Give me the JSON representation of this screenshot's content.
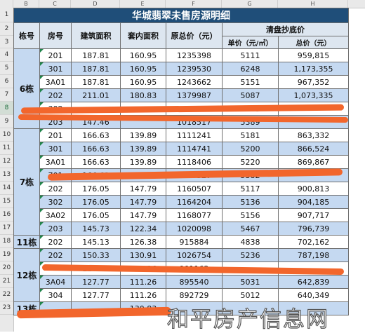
{
  "column_headers": [
    "B",
    "C",
    "D",
    "E",
    "F",
    "G",
    "H"
  ],
  "row_numbers": [
    "1",
    "2",
    "3",
    "4",
    "5",
    "6",
    "7",
    "8",
    "9",
    "10",
    "11",
    "12",
    "13",
    "14",
    "15",
    "16",
    "17",
    "18",
    "19",
    "20",
    "21",
    "22",
    "23"
  ],
  "selected_row": "8",
  "title": "华城翡翠未售房源明细",
  "headers": {
    "building": "栋号",
    "room": "房号",
    "built_area": "建筑面积",
    "inner_area": "套内面积",
    "orig_total": "原总价（元）",
    "clearance": "清盘抄底价",
    "unit_price": "单价（元/㎡）",
    "total_price": "总价（元）"
  },
  "groups": [
    {
      "building": "6栋",
      "rows": [
        {
          "room": "201",
          "built": "187.81",
          "inner": "160.95",
          "orig": "1235398",
          "unit": "5111",
          "total": "959,815"
        },
        {
          "room": "301",
          "built": "187.81",
          "inner": "160.95",
          "orig": "1239530",
          "unit": "6248",
          "total": "1,173,355"
        },
        {
          "room": "3A01",
          "built": "187.81",
          "inner": "160.95",
          "orig": "1243662",
          "unit": "5151",
          "total": "967,352"
        },
        {
          "room": "202",
          "built": "211.01",
          "inner": "180.83",
          "orig": "1379987",
          "unit": "5087",
          "total": "1,073,335"
        },
        {
          "room": "302",
          "built": "",
          "inner": "",
          "orig": "",
          "unit": "6763",
          "total": ""
        },
        {
          "room": "203",
          "built": "147.46",
          "inner": "",
          "orig": "1018517",
          "unit": "5389",
          "total": ""
        }
      ]
    },
    {
      "building": "7栋",
      "rows": [
        {
          "room": "201",
          "built": "166.63",
          "inner": "139.89",
          "orig": "1111241",
          "unit": "5181",
          "total": "863,332"
        },
        {
          "room": "301",
          "built": "166.63",
          "inner": "139.89",
          "orig": "1114741",
          "unit": "5200",
          "total": "866,524"
        },
        {
          "room": "3A01",
          "built": "166.63",
          "inner": "139.89",
          "orig": "1118406",
          "unit": "5220",
          "total": "869,867"
        },
        {
          "room": "701",
          "built": "166.63",
          "inner": "139.89",
          "orig": "1139327",
          "unit": "5382",
          "total": ""
        },
        {
          "room": "202",
          "built": "176.05",
          "inner": "147.79",
          "orig": "1160507",
          "unit": "5117",
          "total": "900,813"
        },
        {
          "room": "302",
          "built": "176.05",
          "inner": "147.79",
          "orig": "1164204",
          "unit": "5136",
          "total": "904,185"
        },
        {
          "room": "3A02",
          "built": "176.05",
          "inner": "147.79",
          "orig": "1168077",
          "unit": "5156",
          "total": "907,717"
        },
        {
          "room": "203",
          "built": "145.73",
          "inner": "122.34",
          "orig": "1020098",
          "unit": "5467",
          "total": "796,739"
        }
      ]
    },
    {
      "building": "11栋",
      "rows": [
        {
          "room": "202",
          "built": "145.13",
          "inner": "126.38",
          "orig": "915884",
          "unit": "4838",
          "total": "702,162"
        }
      ]
    },
    {
      "building": "12栋",
      "rows": [
        {
          "room": "202",
          "built": "150.33",
          "inner": "130.91",
          "orig": "1026754",
          "unit": "5236",
          "total": "787,198"
        },
        {
          "room": "",
          "built": "127.77",
          "inner": "111.26",
          "orig": "901162",
          "unit": "",
          "total": ""
        },
        {
          "room": "3A04",
          "built": "127.77",
          "inner": "111.26",
          "orig": "895540",
          "unit": "5031",
          "total": "642,839"
        },
        {
          "room": "304",
          "built": "127.77",
          "inner": "111.26",
          "orig": "892729",
          "unit": "5012",
          "total": "640,349"
        }
      ]
    },
    {
      "building": "13栋",
      "rows": [
        {
          "room": "",
          "built": "",
          "inner": "130.83",
          "orig": "",
          "unit": "",
          "total": ""
        }
      ]
    }
  ],
  "watermark": "和平房产信息网",
  "colors": {
    "title_bg": "#1f4e79",
    "band": "#c5d9f1",
    "header_bg": "#dde6f0",
    "scribble": "#f2662c"
  }
}
